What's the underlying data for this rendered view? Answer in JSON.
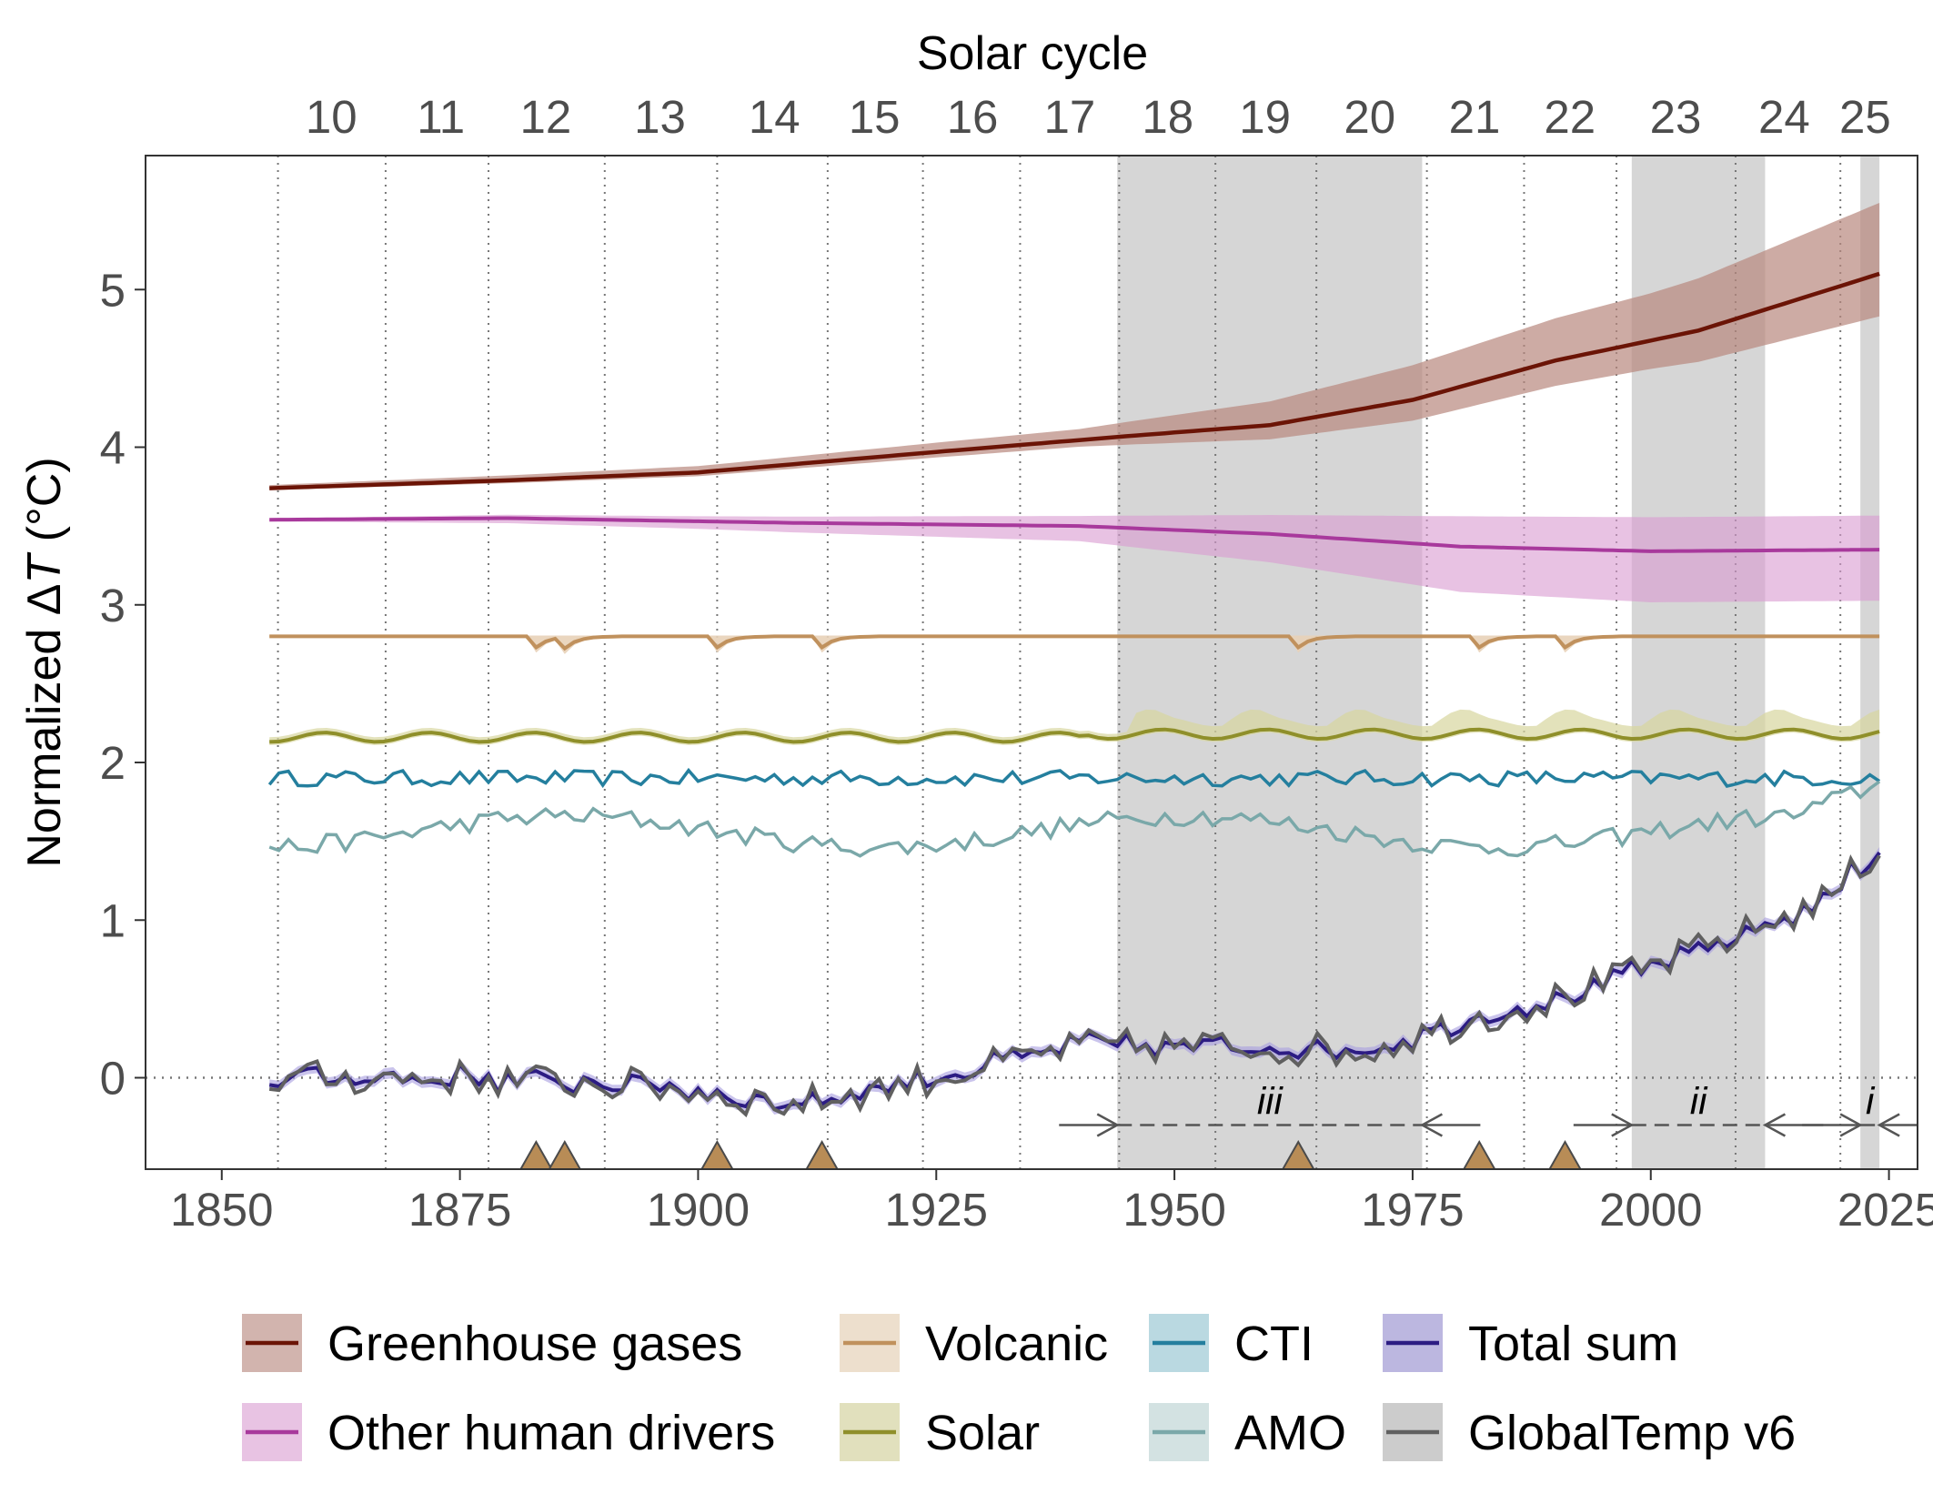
{
  "chart_data": {
    "type": "line",
    "ylabel": "Normalized ΔT (°C)",
    "ylabel_parts": {
      "prefix": "Normalized Δ",
      "italic": "T",
      "suffix": " (°C)"
    },
    "top_axis_title": "Solar cycle",
    "xlim": [
      1842,
      2028
    ],
    "ylim": [
      -0.58,
      5.85
    ],
    "x_ticks": [
      1850,
      1875,
      1900,
      1925,
      1950,
      1975,
      2000,
      2025
    ],
    "x_tick_labels": [
      "1850",
      "1875",
      "1900",
      "1925",
      "1950",
      "1975",
      "2000",
      "2025"
    ],
    "y_ticks": [
      0,
      1,
      2,
      3,
      4,
      5
    ],
    "y_tick_labels": [
      "0",
      "1",
      "2",
      "3",
      "4",
      "5"
    ],
    "solar_cycle_boundaries": [
      1855.9,
      1867.2,
      1878.0,
      1890.2,
      1902.0,
      1913.6,
      1923.6,
      1933.8,
      1944.2,
      1954.3,
      1964.9,
      1976.5,
      1986.7,
      1996.4,
      2008.9,
      2019.9
    ],
    "solar_cycle_labels": [
      "10",
      "11",
      "12",
      "13",
      "14",
      "15",
      "16",
      "17",
      "18",
      "19",
      "20",
      "21",
      "22",
      "23",
      "24",
      "25"
    ],
    "solar_cycle_label_positions": [
      1861.5,
      1873.0,
      1884.0,
      1896.0,
      1908.0,
      1918.5,
      1928.8,
      1939.0,
      1949.3,
      1959.5,
      1970.5,
      1981.5,
      1991.5,
      2002.6,
      2014.0,
      2022.5
    ],
    "shaded_periods": [
      {
        "label": "iii",
        "start": 1944,
        "end": 1976
      },
      {
        "label": "ii",
        "start": 1998,
        "end": 2012
      },
      {
        "label": "i",
        "start": 2022,
        "end": 2024
      }
    ],
    "period_arrow_y": -0.3,
    "volcanic_eruptions": [
      1883,
      1886,
      1902,
      1913,
      1963,
      1982,
      1991
    ],
    "series": [
      {
        "name": "Greenhouse gases",
        "color": "#6b1406",
        "fill": "#c9a29b",
        "style": "ghg"
      },
      {
        "name": "Other human drivers",
        "color": "#a8399c",
        "fill": "#e2b6dc",
        "style": "other"
      },
      {
        "name": "Volcanic",
        "color": "#c0915d",
        "fill": "#ecdcc6",
        "style": "volcanic"
      },
      {
        "name": "Solar",
        "color": "#8f8f2a",
        "fill": "#dede b6",
        "style": "solar"
      },
      {
        "name": "CTI",
        "color": "#247f9e",
        "fill": "#b9dbe4",
        "style": "cti"
      },
      {
        "name": "AMO",
        "color": "#7aa8a9",
        "fill": "#d3e3e3",
        "style": "amo"
      },
      {
        "name": "Total sum",
        "color": "#2c1c83",
        "fill": "#bdb6de",
        "style": "total"
      },
      {
        "name": "GlobalTemp v6",
        "color": "#606060",
        "fill": "#cccccc",
        "style": "obs"
      }
    ],
    "legend": {
      "position": "bottom",
      "columns": [
        [
          "Greenhouse gases",
          "Other human drivers"
        ],
        [
          "Volcanic",
          "Solar"
        ],
        [
          "CTI",
          "AMO"
        ],
        [
          "Total sum",
          "GlobalTemp v6"
        ]
      ]
    },
    "grid": false
  }
}
